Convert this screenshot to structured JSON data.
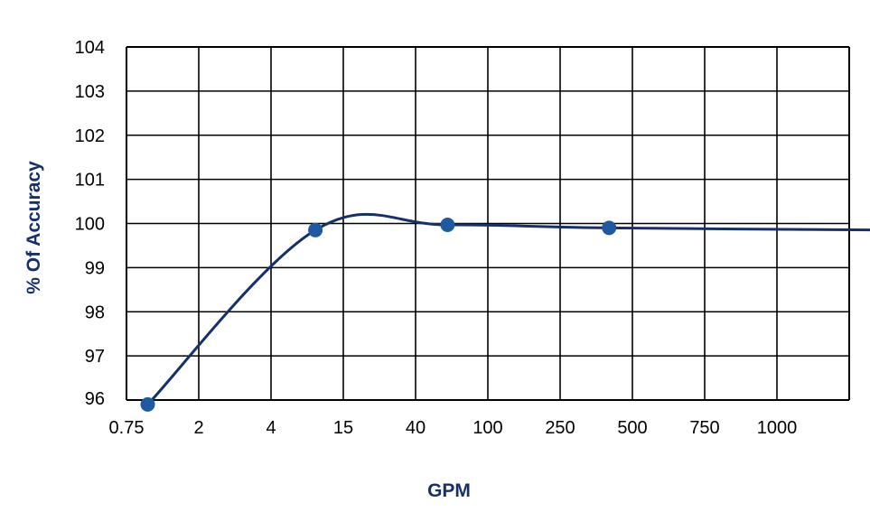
{
  "chart_data": {
    "type": "line",
    "title": "",
    "xlabel": "GPM",
    "ylabel": "% Of Accuracy",
    "x_categories": [
      "0.75",
      "2",
      "4",
      "15",
      "40",
      "100",
      "250",
      "500",
      "750",
      "1000"
    ],
    "ylim": [
      96,
      104
    ],
    "yticks": [
      96,
      97,
      98,
      99,
      100,
      101,
      102,
      103,
      104
    ],
    "grid": true,
    "smooth": true,
    "series": [
      {
        "points": [
          {
            "x": 1,
            "y": 95.9
          },
          {
            "x": 9,
            "y": 99.85
          },
          {
            "x": 60,
            "y": 99.97
          },
          {
            "x": 400,
            "y": 99.9
          },
          {
            "x": 1200,
            "y": 99.85
          }
        ]
      }
    ],
    "colors": {
      "line": "#16306b",
      "marker": "#1f5aa0",
      "label": "#16306b",
      "grid": "#000000"
    }
  }
}
